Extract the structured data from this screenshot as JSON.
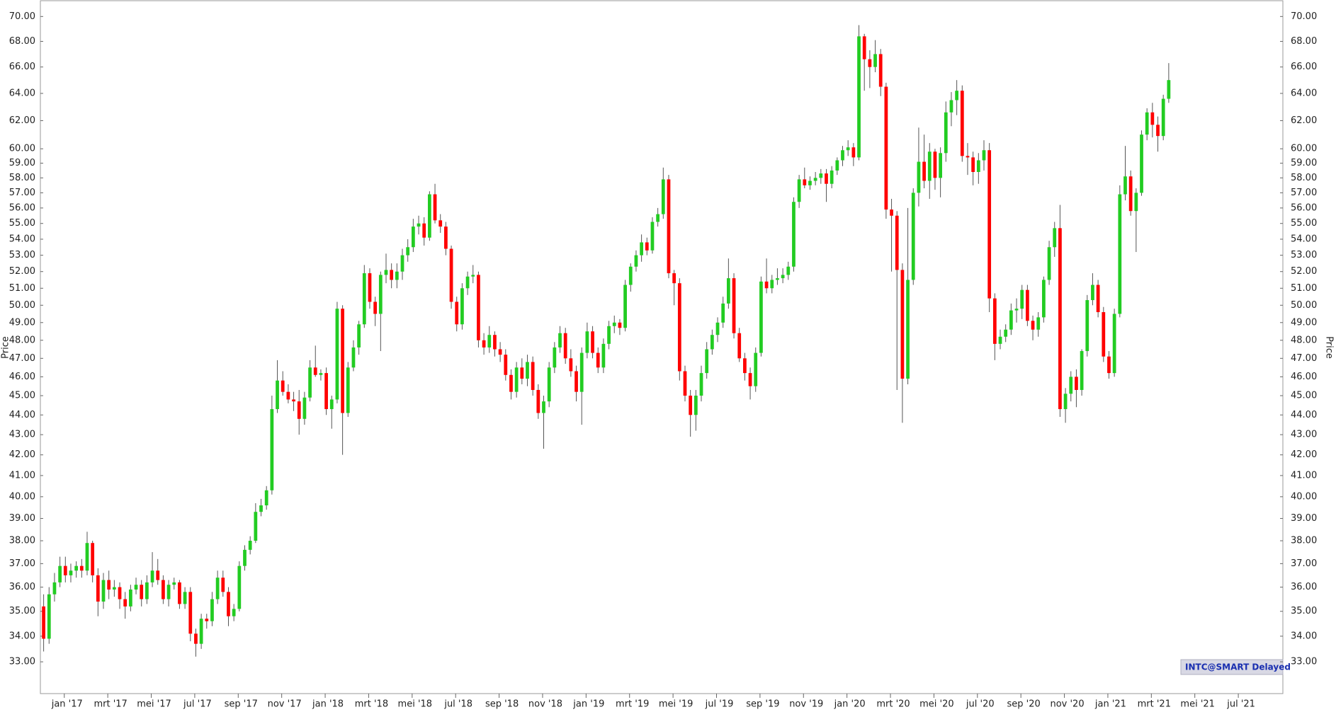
{
  "chart_data": {
    "type": "candlestick",
    "y_label": "Price",
    "badge": "INTC@SMART Delayed",
    "log_scale": true,
    "up_color": "#22cc22",
    "down_color": "#ff0000",
    "ylim": [
      31.8,
      71.3
    ],
    "yticks": [
      {
        "value": 33,
        "label": "33.00"
      },
      {
        "value": 34,
        "label": "34.00"
      },
      {
        "value": 35,
        "label": "35.00"
      },
      {
        "value": 36,
        "label": "36.00"
      },
      {
        "value": 37,
        "label": "37.00"
      },
      {
        "value": 38,
        "label": "38.00"
      },
      {
        "value": 39,
        "label": "39.00"
      },
      {
        "value": 40,
        "label": "40.00"
      },
      {
        "value": 41,
        "label": "41.00"
      },
      {
        "value": 42,
        "label": "42.00"
      },
      {
        "value": 43,
        "label": "43.00"
      },
      {
        "value": 44,
        "label": "44.00"
      },
      {
        "value": 45,
        "label": "45.00"
      },
      {
        "value": 46,
        "label": "46.00"
      },
      {
        "value": 47,
        "label": "47.00"
      },
      {
        "value": 48,
        "label": "48.00"
      },
      {
        "value": 49,
        "label": "49.00"
      },
      {
        "value": 50,
        "label": "50.00"
      },
      {
        "value": 51,
        "label": "51.00"
      },
      {
        "value": 52,
        "label": "52.00"
      },
      {
        "value": 53,
        "label": "53.00"
      },
      {
        "value": 54,
        "label": "54.00"
      },
      {
        "value": 55,
        "label": "55.00"
      },
      {
        "value": 56,
        "label": "56.00"
      },
      {
        "value": 57,
        "label": "57.00"
      },
      {
        "value": 58,
        "label": "58.00"
      },
      {
        "value": 59,
        "label": "59.00"
      },
      {
        "value": 60,
        "label": "60.00"
      },
      {
        "value": 62,
        "label": "62.00"
      },
      {
        "value": 64,
        "label": "64.00"
      },
      {
        "value": 66,
        "label": "66.00"
      },
      {
        "value": 68,
        "label": "68.00"
      },
      {
        "value": 70,
        "label": "70.00"
      }
    ],
    "xlim": [
      -0.6,
      228.0
    ],
    "xticks": [
      {
        "value": 3.8,
        "label": "jan '17"
      },
      {
        "value": 11.8,
        "label": "mrt '17"
      },
      {
        "value": 19.8,
        "label": "mei '17"
      },
      {
        "value": 27.8,
        "label": "jul '17"
      },
      {
        "value": 35.8,
        "label": "sep '17"
      },
      {
        "value": 43.8,
        "label": "nov '17"
      },
      {
        "value": 51.8,
        "label": "jan '18"
      },
      {
        "value": 59.8,
        "label": "mrt '18"
      },
      {
        "value": 67.8,
        "label": "mei '18"
      },
      {
        "value": 75.8,
        "label": "jul '18"
      },
      {
        "value": 83.8,
        "label": "sep '18"
      },
      {
        "value": 91.8,
        "label": "nov '18"
      },
      {
        "value": 99.8,
        "label": "jan '19"
      },
      {
        "value": 107.8,
        "label": "mrt '19"
      },
      {
        "value": 115.8,
        "label": "mei '19"
      },
      {
        "value": 123.8,
        "label": "jul '19"
      },
      {
        "value": 131.8,
        "label": "sep '19"
      },
      {
        "value": 139.8,
        "label": "nov '19"
      },
      {
        "value": 147.8,
        "label": "jan '20"
      },
      {
        "value": 155.8,
        "label": "mrt '20"
      },
      {
        "value": 163.8,
        "label": "mei '20"
      },
      {
        "value": 171.8,
        "label": "jul '20"
      },
      {
        "value": 179.8,
        "label": "sep '20"
      },
      {
        "value": 187.8,
        "label": "nov '20"
      },
      {
        "value": 195.8,
        "label": "jan '21"
      },
      {
        "value": 203.8,
        "label": "mrt '21"
      },
      {
        "value": 211.8,
        "label": "mei '21"
      },
      {
        "value": 219.8,
        "label": "jul '21"
      }
    ],
    "candles": [
      [
        35.2,
        35.7,
        33.4,
        33.9
      ],
      [
        33.9,
        36.0,
        33.7,
        35.7
      ],
      [
        35.7,
        36.6,
        35.4,
        36.2
      ],
      [
        36.2,
        37.3,
        36.0,
        36.9
      ],
      [
        36.9,
        37.3,
        36.2,
        36.5
      ],
      [
        36.5,
        37.0,
        36.2,
        36.7
      ],
      [
        36.7,
        37.1,
        36.4,
        36.9
      ],
      [
        36.9,
        37.2,
        36.4,
        36.7
      ],
      [
        36.7,
        38.4,
        36.5,
        37.9
      ],
      [
        37.9,
        38.0,
        36.2,
        36.5
      ],
      [
        36.5,
        36.8,
        34.8,
        35.4
      ],
      [
        35.4,
        36.6,
        35.1,
        36.3
      ],
      [
        36.3,
        36.7,
        35.5,
        35.9
      ],
      [
        35.9,
        36.3,
        35.6,
        36.0
      ],
      [
        36.0,
        36.2,
        35.1,
        35.5
      ],
      [
        35.5,
        35.8,
        34.7,
        35.2
      ],
      [
        35.2,
        36.1,
        35.0,
        35.9
      ],
      [
        35.9,
        36.4,
        35.7,
        36.1
      ],
      [
        36.1,
        36.3,
        35.2,
        35.5
      ],
      [
        35.5,
        36.5,
        35.3,
        36.2
      ],
      [
        36.2,
        37.5,
        36.0,
        36.7
      ],
      [
        36.7,
        37.2,
        36.1,
        36.3
      ],
      [
        36.3,
        36.5,
        35.3,
        35.5
      ],
      [
        35.5,
        36.3,
        35.2,
        36.1
      ],
      [
        36.1,
        36.4,
        35.9,
        36.2
      ],
      [
        36.2,
        36.3,
        35.1,
        35.3
      ],
      [
        35.3,
        36.0,
        35.1,
        35.8
      ],
      [
        35.8,
        36.0,
        33.8,
        34.1
      ],
      [
        34.1,
        34.3,
        33.2,
        33.7
      ],
      [
        33.7,
        34.9,
        33.5,
        34.7
      ],
      [
        34.7,
        34.9,
        34.3,
        34.6
      ],
      [
        34.6,
        35.8,
        34.4,
        35.5
      ],
      [
        35.5,
        36.7,
        35.3,
        36.4
      ],
      [
        36.4,
        36.7,
        35.6,
        35.8
      ],
      [
        35.8,
        36.0,
        34.4,
        34.8
      ],
      [
        34.8,
        35.3,
        34.6,
        35.1
      ],
      [
        35.1,
        37.1,
        35.0,
        36.9
      ],
      [
        36.9,
        37.8,
        36.7,
        37.6
      ],
      [
        37.6,
        38.2,
        37.4,
        38.0
      ],
      [
        38.0,
        39.7,
        37.9,
        39.3
      ],
      [
        39.3,
        39.9,
        39.1,
        39.6
      ],
      [
        39.6,
        40.5,
        39.4,
        40.3
      ],
      [
        40.3,
        45.0,
        40.1,
        44.3
      ],
      [
        44.3,
        46.9,
        44.1,
        45.8
      ],
      [
        45.8,
        46.3,
        45.0,
        45.2
      ],
      [
        45.2,
        45.6,
        44.6,
        44.8
      ],
      [
        44.8,
        45.2,
        44.2,
        44.7
      ],
      [
        44.7,
        45.3,
        43.0,
        43.8
      ],
      [
        43.8,
        45.2,
        43.5,
        44.9
      ],
      [
        44.9,
        46.9,
        44.7,
        46.5
      ],
      [
        46.5,
        47.7,
        46.0,
        46.1
      ],
      [
        46.1,
        46.4,
        45.8,
        46.2
      ],
      [
        46.2,
        46.5,
        44.0,
        44.3
      ],
      [
        44.3,
        45.0,
        43.3,
        44.8
      ],
      [
        44.8,
        50.2,
        44.6,
        49.8
      ],
      [
        49.8,
        50.0,
        42.0,
        44.1
      ],
      [
        44.1,
        46.8,
        43.9,
        46.5
      ],
      [
        46.5,
        48.0,
        46.3,
        47.6
      ],
      [
        47.6,
        49.1,
        47.2,
        48.9
      ],
      [
        48.9,
        52.4,
        48.7,
        51.9
      ],
      [
        51.9,
        52.2,
        49.8,
        50.2
      ],
      [
        50.2,
        50.5,
        48.8,
        49.5
      ],
      [
        49.5,
        52.0,
        47.4,
        51.8
      ],
      [
        51.8,
        53.1,
        51.3,
        52.1
      ],
      [
        52.1,
        52.5,
        51.0,
        51.5
      ],
      [
        51.5,
        52.5,
        51.0,
        52.0
      ],
      [
        52.0,
        53.4,
        51.5,
        53.0
      ],
      [
        53.0,
        54.0,
        52.6,
        53.5
      ],
      [
        53.5,
        55.3,
        53.2,
        54.8
      ],
      [
        54.8,
        55.5,
        54.3,
        55.0
      ],
      [
        55.0,
        55.4,
        53.6,
        54.1
      ],
      [
        54.1,
        57.1,
        53.9,
        56.9
      ],
      [
        56.9,
        57.6,
        55.0,
        55.2
      ],
      [
        55.2,
        55.6,
        54.4,
        54.8
      ],
      [
        54.8,
        55.1,
        53.0,
        53.4
      ],
      [
        53.4,
        53.6,
        49.8,
        50.2
      ],
      [
        50.2,
        50.5,
        48.5,
        48.9
      ],
      [
        48.9,
        51.3,
        48.6,
        51.0
      ],
      [
        51.0,
        52.0,
        50.6,
        51.7
      ],
      [
        51.7,
        52.4,
        51.3,
        51.8
      ],
      [
        51.8,
        52.0,
        47.6,
        48.0
      ],
      [
        48.0,
        48.4,
        47.2,
        47.6
      ],
      [
        47.6,
        48.8,
        47.3,
        48.3
      ],
      [
        48.3,
        48.5,
        47.1,
        47.5
      ],
      [
        47.5,
        47.9,
        46.8,
        47.2
      ],
      [
        47.2,
        47.5,
        45.8,
        46.1
      ],
      [
        46.1,
        46.4,
        44.8,
        45.2
      ],
      [
        45.2,
        46.8,
        44.9,
        46.5
      ],
      [
        46.5,
        47.0,
        45.6,
        45.9
      ],
      [
        45.9,
        47.2,
        45.5,
        46.8
      ],
      [
        46.8,
        47.1,
        45.0,
        45.3
      ],
      [
        45.3,
        45.6,
        43.8,
        44.1
      ],
      [
        44.1,
        45.0,
        42.3,
        44.7
      ],
      [
        44.7,
        46.8,
        44.4,
        46.5
      ],
      [
        46.5,
        47.9,
        46.2,
        47.6
      ],
      [
        47.6,
        48.8,
        47.3,
        48.4
      ],
      [
        48.4,
        48.7,
        46.7,
        47.0
      ],
      [
        47.0,
        47.5,
        46.0,
        46.3
      ],
      [
        46.3,
        46.6,
        44.7,
        45.2
      ],
      [
        45.2,
        47.6,
        43.5,
        47.3
      ],
      [
        47.3,
        49.0,
        47.0,
        48.5
      ],
      [
        48.5,
        48.8,
        47.0,
        47.3
      ],
      [
        47.3,
        47.6,
        46.2,
        46.5
      ],
      [
        46.5,
        48.1,
        46.2,
        47.8
      ],
      [
        47.8,
        49.1,
        47.5,
        48.8
      ],
      [
        48.8,
        49.4,
        48.4,
        49.0
      ],
      [
        49.0,
        49.2,
        48.3,
        48.7
      ],
      [
        48.7,
        51.5,
        48.5,
        51.2
      ],
      [
        51.2,
        52.5,
        50.8,
        52.3
      ],
      [
        52.3,
        53.3,
        52.0,
        53.0
      ],
      [
        53.0,
        54.3,
        52.6,
        53.8
      ],
      [
        53.8,
        54.1,
        53.0,
        53.3
      ],
      [
        53.3,
        55.4,
        53.1,
        55.1
      ],
      [
        55.1,
        56.0,
        54.8,
        55.6
      ],
      [
        55.6,
        58.7,
        55.3,
        57.9
      ],
      [
        57.9,
        58.2,
        51.6,
        51.9
      ],
      [
        51.9,
        52.1,
        50.0,
        51.3
      ],
      [
        51.3,
        51.6,
        45.8,
        46.3
      ],
      [
        46.3,
        46.6,
        44.7,
        45.0
      ],
      [
        45.0,
        45.3,
        42.9,
        44.0
      ],
      [
        44.0,
        45.3,
        43.2,
        45.0
      ],
      [
        45.0,
        46.6,
        44.7,
        46.2
      ],
      [
        46.2,
        47.9,
        45.9,
        47.5
      ],
      [
        47.5,
        48.6,
        47.2,
        48.3
      ],
      [
        48.3,
        49.3,
        47.9,
        49.0
      ],
      [
        49.0,
        50.5,
        48.7,
        50.1
      ],
      [
        50.1,
        52.8,
        49.8,
        51.6
      ],
      [
        51.6,
        51.9,
        48.1,
        48.4
      ],
      [
        48.4,
        48.7,
        46.8,
        47.0
      ],
      [
        47.0,
        47.3,
        45.8,
        46.2
      ],
      [
        46.2,
        46.5,
        44.8,
        45.5
      ],
      [
        45.5,
        47.6,
        45.2,
        47.3
      ],
      [
        47.3,
        51.7,
        47.1,
        51.4
      ],
      [
        51.4,
        52.8,
        50.7,
        51.0
      ],
      [
        51.0,
        51.8,
        50.7,
        51.5
      ],
      [
        51.5,
        52.2,
        51.2,
        51.6
      ],
      [
        51.6,
        52.2,
        51.3,
        51.8
      ],
      [
        51.8,
        52.6,
        51.5,
        52.3
      ],
      [
        52.3,
        56.7,
        52.0,
        56.4
      ],
      [
        56.4,
        58.2,
        56.0,
        57.9
      ],
      [
        57.9,
        58.7,
        57.3,
        57.5
      ],
      [
        57.5,
        58.1,
        57.2,
        57.8
      ],
      [
        57.8,
        58.4,
        57.5,
        58.0
      ],
      [
        58.0,
        58.6,
        57.6,
        58.3
      ],
      [
        58.3,
        58.6,
        56.4,
        57.6
      ],
      [
        57.6,
        58.8,
        57.3,
        58.5
      ],
      [
        58.5,
        59.4,
        58.2,
        59.2
      ],
      [
        59.2,
        60.2,
        58.8,
        59.9
      ],
      [
        59.9,
        60.6,
        59.5,
        60.1
      ],
      [
        60.1,
        60.4,
        58.8,
        59.4
      ],
      [
        59.4,
        69.3,
        59.2,
        68.4
      ],
      [
        68.4,
        68.6,
        64.2,
        66.6
      ],
      [
        66.6,
        67.3,
        64.4,
        66.0
      ],
      [
        66.0,
        68.1,
        65.6,
        67.0
      ],
      [
        67.0,
        67.4,
        63.8,
        64.5
      ],
      [
        64.5,
        64.8,
        55.3,
        55.9
      ],
      [
        55.9,
        56.6,
        52.0,
        55.5
      ],
      [
        55.5,
        55.8,
        45.3,
        52.1
      ],
      [
        52.1,
        52.5,
        43.6,
        45.9
      ],
      [
        45.9,
        56.0,
        45.6,
        51.5
      ],
      [
        51.5,
        57.3,
        51.2,
        57.0
      ],
      [
        57.0,
        61.5,
        56.1,
        59.1
      ],
      [
        59.1,
        61.0,
        57.3,
        57.8
      ],
      [
        57.8,
        60.4,
        56.6,
        59.8
      ],
      [
        59.8,
        60.0,
        57.2,
        58.0
      ],
      [
        58.0,
        60.1,
        56.7,
        59.7
      ],
      [
        59.7,
        63.4,
        59.1,
        62.6
      ],
      [
        62.6,
        64.1,
        61.6,
        63.5
      ],
      [
        63.5,
        65.0,
        62.4,
        64.2
      ],
      [
        64.2,
        64.6,
        59.1,
        59.5
      ],
      [
        59.5,
        60.4,
        58.2,
        59.4
      ],
      [
        59.4,
        59.8,
        57.5,
        58.4
      ],
      [
        58.4,
        59.7,
        57.6,
        59.2
      ],
      [
        59.2,
        60.6,
        58.5,
        59.9
      ],
      [
        59.9,
        60.4,
        49.6,
        50.4
      ],
      [
        50.4,
        50.7,
        46.9,
        47.8
      ],
      [
        47.8,
        48.6,
        47.5,
        48.2
      ],
      [
        48.2,
        48.9,
        47.9,
        48.6
      ],
      [
        48.6,
        50.1,
        48.3,
        49.7
      ],
      [
        49.7,
        50.4,
        49.0,
        49.8
      ],
      [
        49.8,
        51.2,
        49.2,
        50.9
      ],
      [
        50.9,
        51.2,
        48.8,
        49.1
      ],
      [
        49.1,
        49.4,
        48.0,
        48.6
      ],
      [
        48.6,
        49.6,
        48.2,
        49.3
      ],
      [
        49.3,
        51.7,
        49.0,
        51.5
      ],
      [
        51.5,
        53.9,
        51.2,
        53.5
      ],
      [
        53.5,
        55.1,
        52.9,
        54.7
      ],
      [
        54.7,
        56.2,
        43.9,
        44.3
      ],
      [
        44.3,
        45.4,
        43.6,
        45.1
      ],
      [
        45.1,
        46.3,
        44.7,
        46.0
      ],
      [
        46.0,
        46.4,
        44.4,
        45.3
      ],
      [
        45.3,
        47.5,
        45.0,
        47.4
      ],
      [
        47.4,
        50.6,
        47.1,
        50.3
      ],
      [
        50.3,
        51.9,
        50.0,
        51.2
      ],
      [
        51.2,
        51.5,
        49.3,
        49.6
      ],
      [
        49.6,
        49.9,
        46.8,
        47.1
      ],
      [
        47.1,
        47.4,
        45.9,
        46.2
      ],
      [
        46.2,
        49.8,
        46.0,
        49.5
      ],
      [
        49.5,
        57.5,
        49.3,
        56.9
      ],
      [
        56.9,
        60.2,
        56.5,
        58.1
      ],
      [
        58.1,
        58.5,
        55.5,
        55.8
      ],
      [
        55.8,
        57.3,
        53.2,
        57.0
      ],
      [
        57.0,
        61.3,
        56.8,
        61.0
      ],
      [
        61.0,
        62.9,
        60.6,
        62.6
      ],
      [
        62.6,
        63.3,
        60.8,
        61.7
      ],
      [
        61.7,
        62.3,
        59.8,
        60.9
      ],
      [
        60.9,
        63.9,
        60.6,
        63.6
      ],
      [
        63.6,
        66.3,
        63.3,
        65.0
      ]
    ]
  }
}
